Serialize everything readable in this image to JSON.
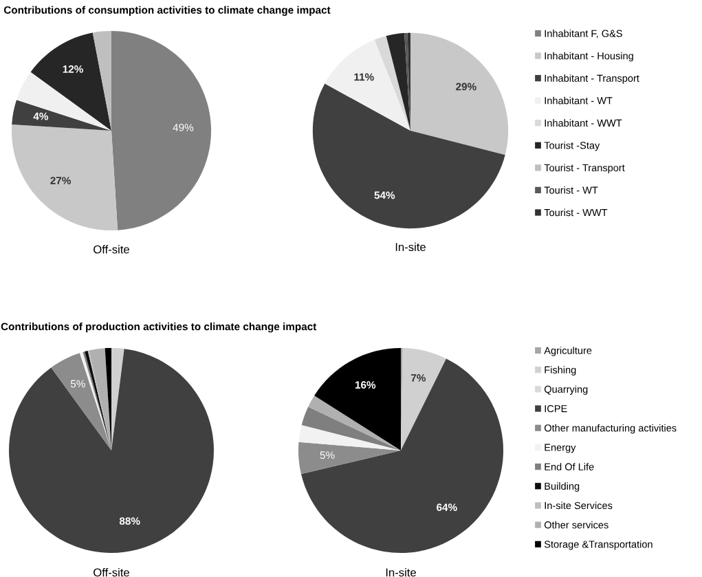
{
  "chart_data": [
    {
      "type": "pie",
      "title": "Contributions of consumption activities to climate change impact",
      "legend": "right",
      "categories": [
        "Inhabitant F, G&S",
        "Inhabitant - Housing",
        "Inhabitant - Transport",
        "Inhabitant - WT",
        "Inhabitant - WWT",
        "Tourist -Stay",
        "Tourist - Transport",
        "Tourist - WT",
        "Tourist - WWT"
      ],
      "colors": [
        "#808080",
        "#c8c8c8",
        "#404040",
        "#f0f0f0",
        "#d9d9d9",
        "#262626",
        "#bfbfbf",
        "#595959",
        "#333333"
      ],
      "series": [
        {
          "name": "Off-site",
          "values": [
            49,
            27,
            4,
            5,
            0,
            12,
            3,
            0,
            0
          ],
          "value_labels": [
            "49%",
            "27%",
            "4%",
            null,
            null,
            "12%",
            null,
            null,
            null
          ]
        },
        {
          "name": "In-site",
          "values": [
            0,
            29,
            54,
            11,
            2,
            3,
            0,
            0.5,
            0.5
          ],
          "value_labels": [
            null,
            "29%",
            "54%",
            "11%",
            null,
            null,
            null,
            null,
            null
          ]
        }
      ]
    },
    {
      "type": "pie",
      "title": "Contributions of production activities to climate change impact",
      "legend": "right",
      "categories": [
        "Agriculture",
        "Fishing",
        "Quarrying",
        "ICPE",
        "Other manufacturing activities",
        "Energy",
        "End Of Life",
        "Building",
        "In-site Services",
        "Other services",
        "Storage &Transportation"
      ],
      "colors": [
        "#a6a6a6",
        "#d0d0d0",
        "#d9d9d9",
        "#404040",
        "#8c8c8c",
        "#f2f2f2",
        "#7f7f7f",
        "#0d0d0d",
        "#bfbfbf",
        "#b0b0b0",
        "#000000"
      ],
      "series": [
        {
          "name": "Off-site",
          "values": [
            0,
            2,
            0,
            88,
            5,
            0.5,
            0.3,
            0.5,
            0.2,
            2.5,
            1
          ],
          "value_labels": [
            null,
            null,
            null,
            "88%",
            "5%",
            null,
            null,
            null,
            null,
            null,
            null
          ]
        },
        {
          "name": "In-site",
          "values": [
            0.3,
            7,
            0,
            64,
            5,
            2.7,
            3,
            0,
            0,
            2,
            16
          ],
          "value_labels": [
            null,
            "7%",
            null,
            "64%",
            "5%",
            null,
            null,
            null,
            null,
            null,
            "16%"
          ]
        }
      ]
    }
  ]
}
